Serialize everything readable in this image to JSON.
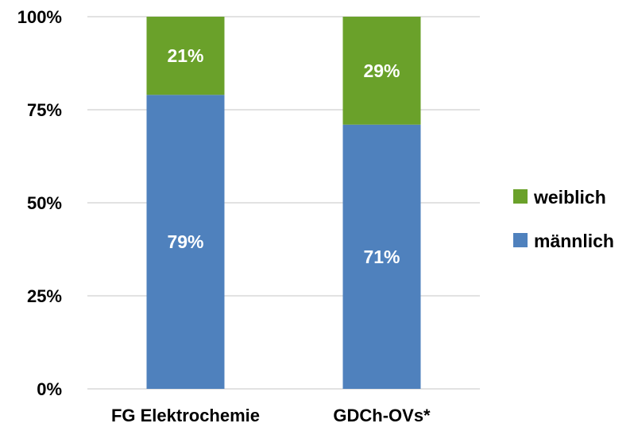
{
  "chart_data": {
    "type": "bar",
    "stacked": true,
    "categories": [
      "FG Elektrochemie",
      "GDCh-OVs*"
    ],
    "series": [
      {
        "name": "männlich",
        "values": [
          79,
          71
        ],
        "color": "#4f81bd",
        "labels": [
          "79%",
          "71%"
        ]
      },
      {
        "name": "weiblich",
        "values": [
          21,
          29
        ],
        "color": "#6aa12a",
        "labels": [
          "21%",
          "29%"
        ]
      }
    ],
    "ylim": [
      0,
      100
    ],
    "yticks": [
      "0%",
      "25%",
      "50%",
      "75%",
      "100%"
    ],
    "grid": true,
    "legend": "right",
    "legend_order": [
      "weiblich",
      "männlich"
    ]
  }
}
